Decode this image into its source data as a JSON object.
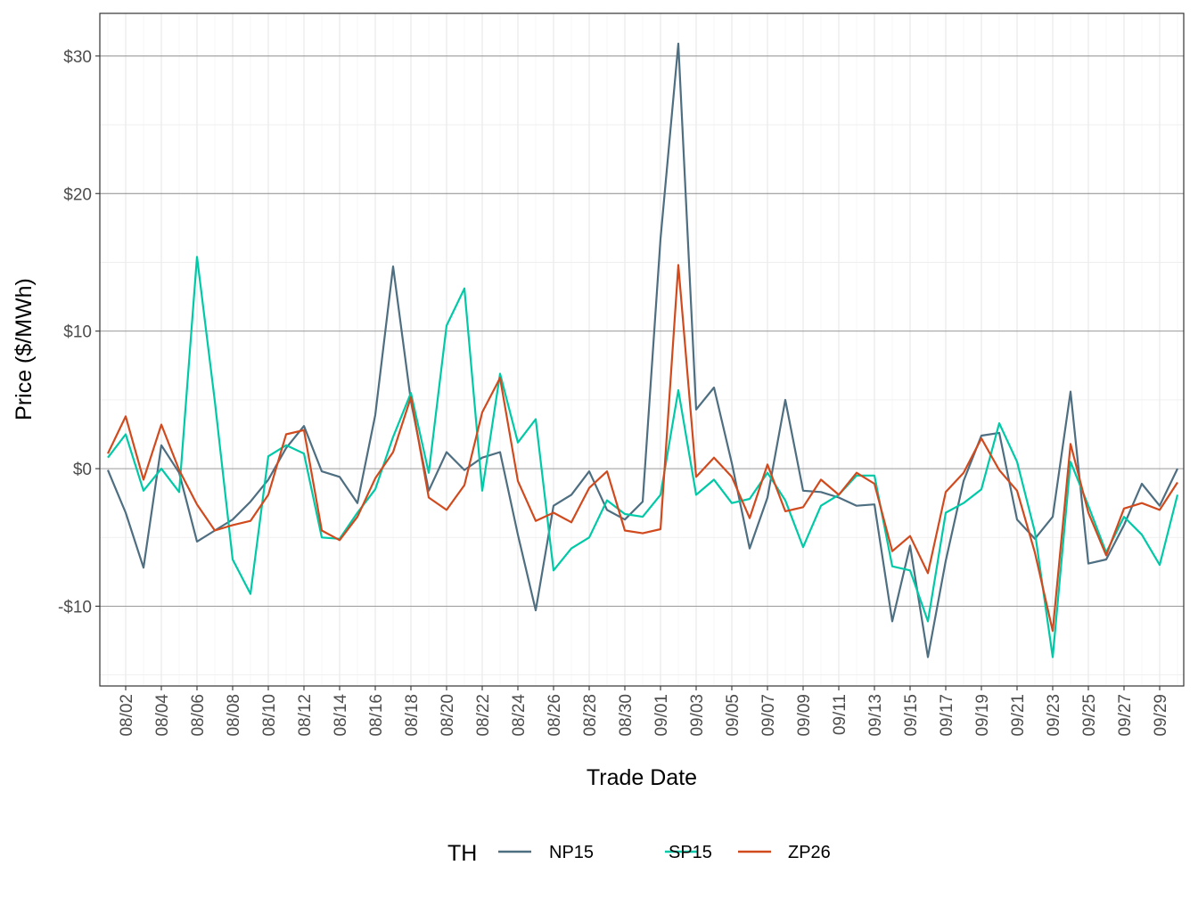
{
  "chart_data": {
    "type": "line",
    "title": "",
    "xlabel": "Trade Date",
    "ylabel": "Price ($/MWh)",
    "ylim": [
      -15.8,
      33.1
    ],
    "y_ticks": [
      -10,
      0,
      10,
      20,
      30
    ],
    "y_tick_labels": [
      "-$10",
      "$0",
      "$10",
      "$20",
      "$30"
    ],
    "x": [
      "08/01",
      "08/02",
      "08/03",
      "08/04",
      "08/05",
      "08/06",
      "08/07",
      "08/08",
      "08/09",
      "08/10",
      "08/11",
      "08/12",
      "08/13",
      "08/14",
      "08/15",
      "08/16",
      "08/17",
      "08/18",
      "08/19",
      "08/20",
      "08/21",
      "08/22",
      "08/23",
      "08/24",
      "08/25",
      "08/26",
      "08/27",
      "08/28",
      "08/29",
      "08/30",
      "08/31",
      "09/01",
      "09/02",
      "09/03",
      "09/04",
      "09/05",
      "09/06",
      "09/07",
      "09/08",
      "09/09",
      "09/10",
      "09/11",
      "09/12",
      "09/13",
      "09/14",
      "09/15",
      "09/16",
      "09/17",
      "09/18",
      "09/19",
      "09/20",
      "09/21",
      "09/22",
      "09/23",
      "09/24",
      "09/25",
      "09/26",
      "09/27",
      "09/28",
      "09/29",
      "09/30"
    ],
    "x_tick_labels": [
      "08/02",
      "08/04",
      "08/06",
      "08/08",
      "08/10",
      "08/12",
      "08/14",
      "08/16",
      "08/18",
      "08/20",
      "08/22",
      "08/24",
      "08/26",
      "08/28",
      "08/30",
      "09/01",
      "09/03",
      "09/05",
      "09/07",
      "09/09",
      "09/11",
      "09/13",
      "09/15",
      "09/17",
      "09/19",
      "09/21",
      "09/23",
      "09/25",
      "09/27",
      "09/29"
    ],
    "grid": true,
    "legend": {
      "title": "TH",
      "position": "bottom"
    },
    "series": [
      {
        "name": "NP15",
        "color": "#4E6E81",
        "values": [
          -0.1,
          -3.2,
          -7.2,
          1.7,
          -0.3,
          -5.3,
          -4.5,
          -3.7,
          -2.4,
          -0.8,
          1.5,
          3.1,
          -0.2,
          -0.6,
          -2.5,
          3.9,
          14.7,
          4.9,
          -1.6,
          1.2,
          -0.1,
          0.8,
          1.2,
          -4.8,
          -10.3,
          -2.7,
          -1.9,
          -0.2,
          -3.0,
          -3.7,
          -2.4,
          16.7,
          30.9,
          4.3,
          5.9,
          0.4,
          -5.8,
          -2.1,
          5.0,
          -1.6,
          -1.7,
          -2.1,
          -2.7,
          -2.6,
          -11.1,
          -5.6,
          -13.7,
          -6.7,
          -0.9,
          2.4,
          2.6,
          -3.7,
          -5.1,
          -3.5,
          5.6,
          -6.9,
          -6.6,
          -4.1,
          -1.1,
          -2.7,
          0.0
        ]
      },
      {
        "name": "SP15",
        "color": "#00C9A7",
        "values": [
          0.8,
          2.5,
          -1.6,
          0.0,
          -1.7,
          15.4,
          4.9,
          -6.6,
          -9.1,
          0.9,
          1.7,
          1.1,
          -5.0,
          -5.1,
          -3.2,
          -1.5,
          2.3,
          5.5,
          -0.3,
          10.4,
          13.1,
          -1.6,
          6.9,
          1.9,
          3.6,
          -7.4,
          -5.8,
          -5.0,
          -2.3,
          -3.3,
          -3.5,
          -1.9,
          5.7,
          -1.9,
          -0.8,
          -2.5,
          -2.2,
          -0.3,
          -2.3,
          -5.7,
          -2.7,
          -1.9,
          -0.5,
          -0.5,
          -7.1,
          -7.4,
          -11.1,
          -3.2,
          -2.5,
          -1.5,
          3.3,
          0.5,
          -4.6,
          -13.7,
          0.5,
          -2.7,
          -6.1,
          -3.5,
          -4.8,
          -7.0,
          -1.9
        ]
      },
      {
        "name": "ZP26",
        "color": "#D14A1E",
        "values": [
          1.1,
          3.8,
          -0.8,
          3.2,
          -0.1,
          -2.6,
          -4.5,
          -4.1,
          -3.8,
          -1.9,
          2.5,
          2.8,
          -4.5,
          -5.2,
          -3.5,
          -0.7,
          1.2,
          5.2,
          -2.1,
          -3.0,
          -1.2,
          4.1,
          6.6,
          -0.9,
          -3.8,
          -3.2,
          -3.9,
          -1.4,
          -0.2,
          -4.5,
          -4.7,
          -4.4,
          14.8,
          -0.6,
          0.8,
          -0.6,
          -3.6,
          0.3,
          -3.1,
          -2.8,
          -0.8,
          -1.9,
          -0.3,
          -1.1,
          -6.0,
          -4.9,
          -7.6,
          -1.7,
          -0.3,
          2.2,
          -0.1,
          -1.6,
          -6.1,
          -11.8,
          1.8,
          -3.2,
          -6.3,
          -2.9,
          -2.5,
          -3.0,
          -1.0
        ]
      }
    ]
  }
}
